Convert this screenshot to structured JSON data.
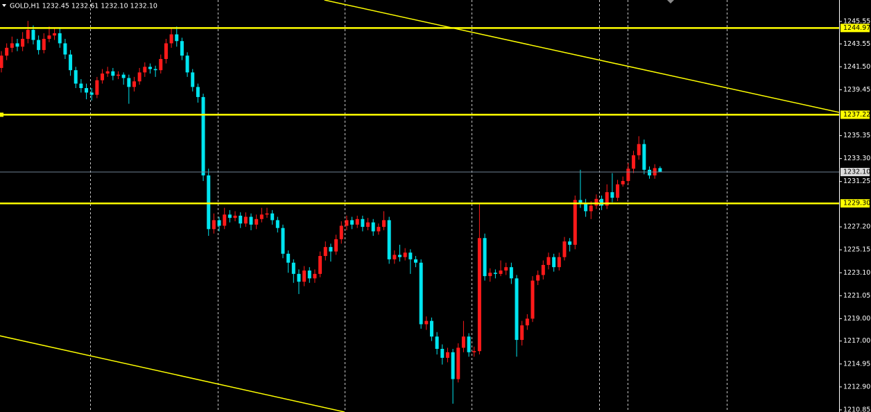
{
  "chart_data": {
    "type": "candlestick",
    "symbol": "GOLD,H1",
    "last_labels": [
      "1232.45",
      "1232.61",
      "1232.10",
      "1232.10"
    ],
    "up_color": "#ff1a1a",
    "down_color": "#00e5f0",
    "level_color": "#ffff00",
    "ylim": [
      1210.66,
      1247.47
    ],
    "yticks": [
      1245.55,
      1243.55,
      {
        "value": 1241.5,
        "label": "1241.50"
      },
      1239.45,
      1235.35,
      {
        "value": 1233.3,
        "label": "1233.30"
      },
      1231.25,
      {
        "value": 1227.2,
        "label": "1227.20"
      },
      1225.15,
      {
        "value": 1223.1,
        "label": "1223.10"
      },
      1221.05,
      {
        "value": 1219.0,
        "label": "1219.00"
      },
      {
        "value": 1217.0,
        "label": "1217.00"
      },
      1214.95,
      {
        "value": 1212.9,
        "label": "1212.90"
      },
      1210.85
    ],
    "levels": [
      1244.97,
      1237.22,
      {
        "value": 1229.3,
        "label": "1229.30"
      }
    ],
    "trendlines": [
      {
        "x": [
          60.8,
          157.7
        ],
        "y": [
          1247.47,
          1237.43
        ]
      },
      {
        "x": [
          -0.3,
          64.6
        ],
        "y": [
          1217.47,
          1210.66
        ]
      }
    ],
    "open": [
      1241.4,
      1242.5,
      1243.2,
      1243.6,
      1243.3,
      1244.0,
      1244.8,
      1243.9,
      1243.0,
      1244.0,
      1244.3,
      1244.5,
      1243.6,
      1242.6,
      1241.2,
      1240.0,
      1239.6,
      1239.2,
      1239.0,
      1240.3,
      1240.9,
      1241.1,
      1240.7,
      1240.8,
      1240.5,
      1239.7,
      1240.2,
      1241.0,
      1241.5,
      1241.3,
      1241.2,
      1242.2,
      1243.6,
      1244.4,
      1243.8,
      1242.5,
      1241.0,
      1239.7,
      1238.8,
      1231.8,
      1227.0,
      1227.8,
      1227.3,
      1228.3,
      1228.0,
      1228.2,
      1227.5,
      1228.1,
      1227.4,
      1227.9,
      1228.3,
      1228.4,
      1227.8,
      1227.1,
      1224.8,
      1224.0,
      1223.0,
      1222.3,
      1223.3,
      1222.6,
      1223.0,
      1224.6,
      1225.4,
      1225.0,
      1226.1,
      1227.3,
      1227.8,
      1227.4,
      1227.9,
      1227.2,
      1227.6,
      1226.8,
      1227.2,
      1227.8,
      1224.3,
      1224.7,
      1224.5,
      1224.9,
      1224.3,
      1224.0,
      1218.5,
      1218.8,
      1217.4,
      1216.3,
      1215.5,
      1216.0,
      1213.6,
      1216.4,
      1217.4,
      1216.0,
      1216.1,
      1226.2,
      1222.8,
      1223.1,
      1223.0,
      1223.3,
      1223.6,
      1222.6,
      1217.1,
      1218.4,
      1219.0,
      1222.4,
      1222.9,
      1223.8,
      1224.5,
      1223.6,
      1224.5,
      1225.9,
      1225.6,
      1229.6,
      1229.3,
      1228.6,
      1229.1,
      1229.7,
      1229.1,
      1230.3,
      1229.8,
      1231.0,
      1231.3,
      1232.4,
      1233.6,
      1234.6,
      1232.3,
      1231.8,
      1232.45
    ],
    "high": [
      1242.9,
      1243.6,
      1244.2,
      1244.0,
      1244.6,
      1245.6,
      1245.2,
      1244.3,
      1244.5,
      1245.1,
      1245.0,
      1244.9,
      1244.0,
      1243.0,
      1241.5,
      1240.4,
      1240.0,
      1239.6,
      1240.6,
      1241.3,
      1241.5,
      1241.4,
      1241.1,
      1241.0,
      1240.8,
      1240.6,
      1241.4,
      1241.9,
      1241.8,
      1241.6,
      1242.6,
      1244.0,
      1245.0,
      1245.1,
      1244.1,
      1242.8,
      1241.3,
      1240.0,
      1239.1,
      1232.4,
      1228.4,
      1228.1,
      1228.9,
      1228.7,
      1228.6,
      1228.5,
      1228.5,
      1228.4,
      1228.3,
      1228.9,
      1228.9,
      1228.7,
      1228.1,
      1227.4,
      1225.1,
      1224.3,
      1223.4,
      1223.7,
      1223.6,
      1223.4,
      1225.0,
      1225.9,
      1225.7,
      1226.5,
      1227.7,
      1228.2,
      1228.1,
      1228.2,
      1228.2,
      1228.0,
      1227.9,
      1227.5,
      1228.6,
      1228.1,
      1225.1,
      1225.6,
      1225.3,
      1225.2,
      1224.6,
      1224.3,
      1219.2,
      1219.1,
      1217.8,
      1216.7,
      1216.4,
      1216.3,
      1216.8,
      1218.8,
      1217.7,
      1216.5,
      1229.3,
      1226.6,
      1223.5,
      1223.4,
      1224.2,
      1224.0,
      1224.0,
      1222.9,
      1218.8,
      1219.4,
      1222.8,
      1223.3,
      1224.2,
      1224.9,
      1224.8,
      1224.9,
      1226.3,
      1226.2,
      1230.0,
      1232.3,
      1229.7,
      1229.5,
      1230.1,
      1230.0,
      1231.0,
      1232.0,
      1231.4,
      1231.7,
      1232.9,
      1234.0,
      1235.3,
      1235.0,
      1232.6,
      1232.8,
      1232.61
    ],
    "low": [
      1241.0,
      1242.1,
      1242.8,
      1242.9,
      1242.9,
      1243.6,
      1243.5,
      1242.6,
      1242.7,
      1243.7,
      1243.9,
      1243.2,
      1242.2,
      1240.7,
      1239.6,
      1239.2,
      1238.6,
      1238.5,
      1238.7,
      1240.0,
      1240.6,
      1240.3,
      1240.4,
      1239.9,
      1238.2,
      1239.3,
      1239.9,
      1240.6,
      1240.9,
      1240.6,
      1240.9,
      1241.8,
      1243.2,
      1243.3,
      1242.1,
      1240.6,
      1239.3,
      1238.3,
      1231.3,
      1226.4,
      1226.6,
      1226.8,
      1227.0,
      1227.6,
      1227.7,
      1227.1,
      1227.2,
      1226.9,
      1227.0,
      1227.6,
      1228.0,
      1227.4,
      1226.7,
      1224.4,
      1223.1,
      1222.2,
      1221.2,
      1221.9,
      1222.2,
      1222.2,
      1222.7,
      1224.2,
      1224.1,
      1224.7,
      1225.7,
      1226.9,
      1227.0,
      1227.1,
      1226.8,
      1226.9,
      1226.4,
      1226.5,
      1226.9,
      1223.9,
      1223.9,
      1224.1,
      1224.2,
      1223.0,
      1223.6,
      1218.1,
      1218.0,
      1217.0,
      1215.8,
      1214.9,
      1215.1,
      1211.4,
      1213.3,
      1216.0,
      1215.6,
      1215.6,
      1215.8,
      1222.4,
      1222.3,
      1222.6,
      1222.8,
      1222.9,
      1222.1,
      1215.6,
      1216.6,
      1218.0,
      1218.7,
      1222.0,
      1222.5,
      1223.4,
      1223.2,
      1223.3,
      1224.2,
      1225.0,
      1225.2,
      1228.9,
      1228.1,
      1227.9,
      1228.8,
      1228.7,
      1228.8,
      1229.4,
      1229.5,
      1230.8,
      1231.0,
      1232.0,
      1233.2,
      1231.9,
      1231.5,
      1231.5,
      1232.1
    ],
    "close": [
      1242.5,
      1243.2,
      1243.6,
      1243.3,
      1244.0,
      1244.8,
      1243.9,
      1243.0,
      1244.0,
      1244.3,
      1244.5,
      1243.6,
      1242.6,
      1241.2,
      1240.0,
      1239.6,
      1239.2,
      1239.0,
      1240.3,
      1240.9,
      1241.1,
      1240.7,
      1240.8,
      1240.5,
      1239.7,
      1240.2,
      1241.0,
      1241.5,
      1241.3,
      1241.2,
      1242.2,
      1243.6,
      1244.4,
      1243.8,
      1242.5,
      1241.0,
      1239.7,
      1238.8,
      1231.8,
      1227.0,
      1227.8,
      1227.3,
      1228.3,
      1228.0,
      1228.2,
      1227.5,
      1228.1,
      1227.4,
      1227.9,
      1228.3,
      1228.4,
      1227.8,
      1227.1,
      1224.8,
      1224.0,
      1223.0,
      1222.3,
      1223.3,
      1222.6,
      1223.0,
      1224.6,
      1225.4,
      1225.0,
      1226.1,
      1227.3,
      1227.8,
      1227.4,
      1227.9,
      1227.2,
      1227.6,
      1226.8,
      1227.2,
      1227.8,
      1224.3,
      1224.7,
      1224.5,
      1224.9,
      1224.3,
      1224.0,
      1218.5,
      1218.8,
      1217.4,
      1216.3,
      1215.5,
      1216.0,
      1213.6,
      1216.4,
      1217.4,
      1216.0,
      1216.1,
      1226.2,
      1222.8,
      1223.1,
      1223.0,
      1223.3,
      1223.6,
      1222.6,
      1217.1,
      1218.4,
      1219.0,
      1222.4,
      1222.9,
      1223.8,
      1224.5,
      1223.6,
      1224.5,
      1225.9,
      1225.6,
      1229.6,
      1229.3,
      1228.6,
      1229.1,
      1229.7,
      1229.1,
      1230.3,
      1229.8,
      1231.0,
      1231.3,
      1232.4,
      1233.6,
      1234.6,
      1232.3,
      1231.8,
      1232.45,
      1232.1
    ]
  }
}
